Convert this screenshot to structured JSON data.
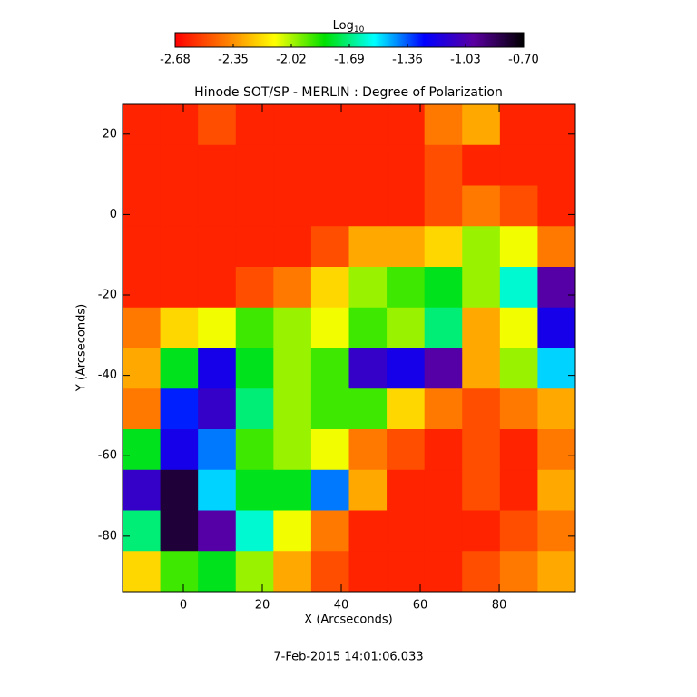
{
  "chart_data": {
    "type": "heatmap",
    "title": "Hinode SOT/SP - MERLIN : Degree of Polarization",
    "x_label": "X (Arcseconds)",
    "y_label": "Y (Arcseconds)",
    "footer": "7-Feb-2015 14:01:06.033",
    "colorbar_label": "Log",
    "colorbar_label_sub": "10",
    "colorbar_lim": [
      -2.68,
      -0.7
    ],
    "colorbar_ticks": [
      -2.68,
      -2.35,
      -2.02,
      -1.69,
      -1.36,
      -1.03,
      {
        "value": -0.7,
        "label": "-0.70"
      }
    ],
    "colorscale": [
      "#ff0000",
      "#ff7a00",
      "#ffff00",
      "#00e000",
      "#00ffff",
      "#0000ff",
      "#5a00a0",
      "#000000"
    ],
    "xlim": [
      -15.4,
      99.3
    ],
    "ylim": [
      -93.8,
      27.4
    ],
    "xticks": [
      0,
      20,
      40,
      60,
      80
    ],
    "yticks": [
      20,
      0,
      -20,
      -40,
      -60,
      -80
    ],
    "z": [
      [
        -2.6,
        -2.6,
        -2.5,
        -2.6,
        -2.6,
        -2.6,
        -2.6,
        -2.6,
        -2.4,
        -2.3,
        -2.6,
        -2.6
      ],
      [
        -2.6,
        -2.6,
        -2.6,
        -2.6,
        -2.6,
        -2.6,
        -2.6,
        -2.6,
        -2.5,
        -2.6,
        -2.6,
        -2.6
      ],
      [
        -2.6,
        -2.6,
        -2.6,
        -2.6,
        -2.6,
        -2.6,
        -2.6,
        -2.6,
        -2.5,
        -2.4,
        -2.5,
        -2.6
      ],
      [
        -2.6,
        -2.6,
        -2.6,
        -2.6,
        -2.6,
        -2.5,
        -2.3,
        -2.3,
        -2.2,
        -2.0,
        -2.1,
        -2.4
      ],
      [
        -2.6,
        -2.6,
        -2.6,
        -2.5,
        -2.4,
        -2.2,
        -2.0,
        -1.9,
        -1.8,
        -2.0,
        -1.6,
        -1.0
      ],
      [
        -2.4,
        -2.2,
        -2.1,
        -1.9,
        -2.0,
        -2.1,
        -1.9,
        -2.0,
        -1.7,
        -2.3,
        -2.1,
        -1.2
      ],
      [
        -2.3,
        -1.8,
        -1.2,
        -1.8,
        -2.0,
        -1.9,
        -1.1,
        -1.2,
        -1.0,
        -2.3,
        -2.0,
        -1.5
      ],
      [
        -2.4,
        -1.3,
        -1.1,
        -1.7,
        -2.0,
        -1.9,
        -1.9,
        -2.2,
        -2.4,
        -2.5,
        -2.4,
        -2.3
      ],
      [
        -1.8,
        -1.2,
        -1.4,
        -1.9,
        -2.0,
        -2.1,
        -2.4,
        -2.5,
        -2.6,
        -2.5,
        -2.6,
        -2.4
      ],
      [
        -1.1,
        -0.8,
        -1.5,
        -1.8,
        -1.8,
        -1.4,
        -2.3,
        -2.6,
        -2.6,
        -2.5,
        -2.6,
        -2.3
      ],
      [
        -1.7,
        -0.8,
        -1.0,
        -1.6,
        -2.1,
        -2.4,
        -2.6,
        -2.6,
        -2.6,
        -2.6,
        -2.5,
        -2.4
      ],
      [
        -2.2,
        -1.9,
        -1.8,
        -2.0,
        -2.3,
        -2.5,
        -2.6,
        -2.6,
        -2.6,
        -2.5,
        -2.4,
        -2.3
      ]
    ]
  }
}
